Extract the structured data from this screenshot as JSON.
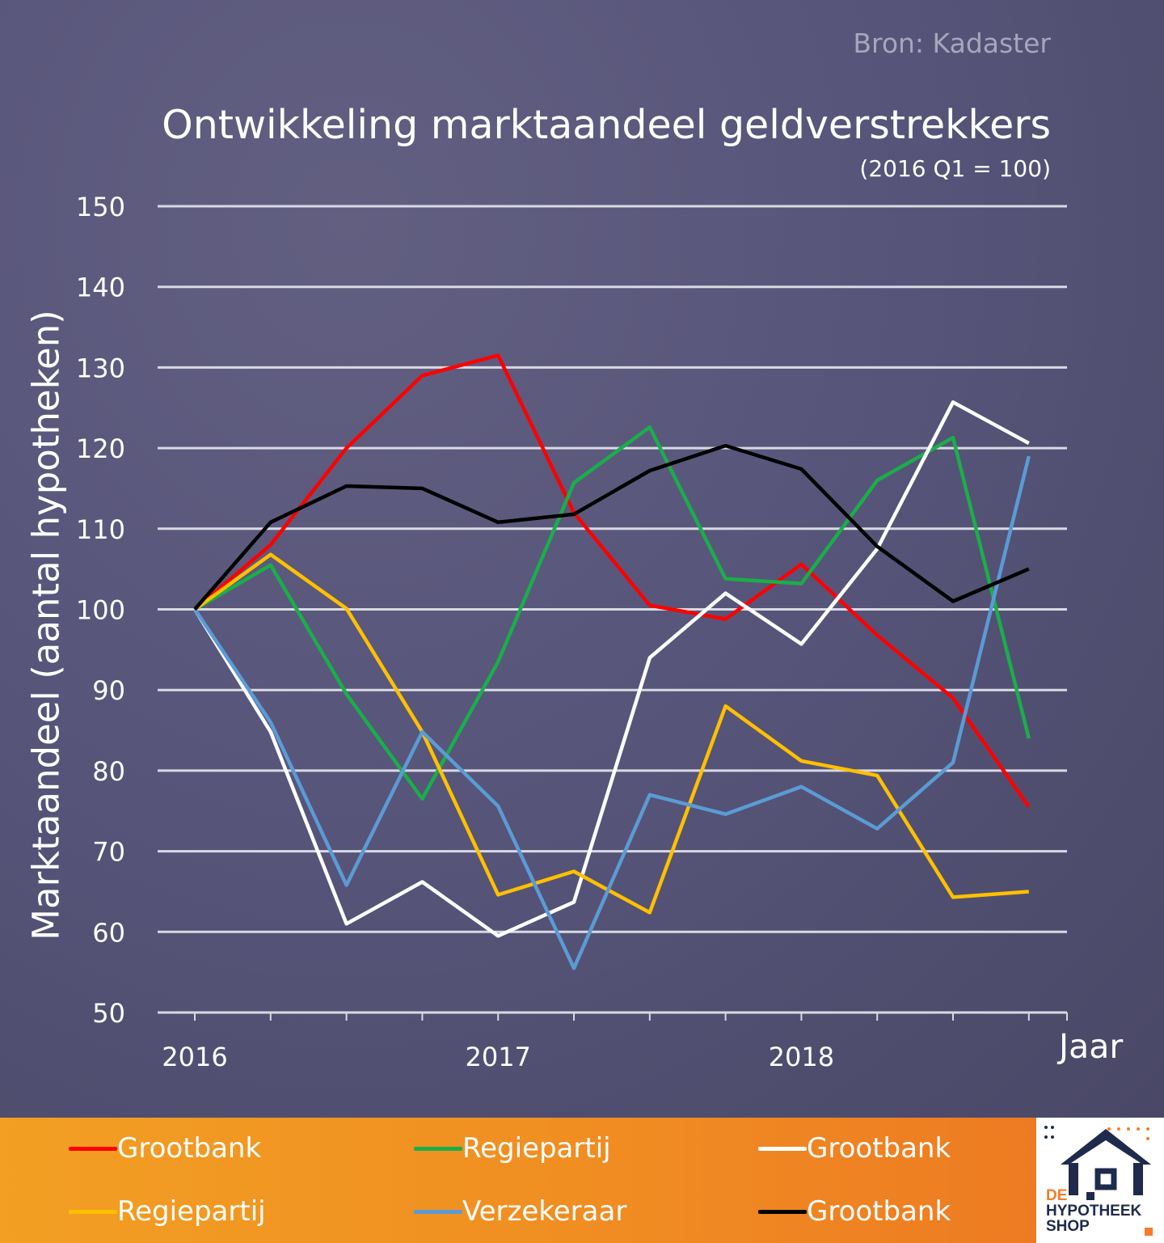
{
  "source": "Bron: Kadaster",
  "chart_data": {
    "type": "line",
    "title": "Ontwikkeling marktaandeel geldverstrekkers",
    "subtitle": "(2016 Q1 = 100)",
    "ylabel": "Marktaandeel (aantal hypotheken)",
    "xlabel": "Jaar",
    "ylim": [
      50,
      150
    ],
    "yticks": [
      50,
      60,
      70,
      80,
      90,
      100,
      110,
      120,
      130,
      140,
      150
    ],
    "x_tick_labels": [
      {
        "label": "2016",
        "x": 0
      },
      {
        "label": "2017",
        "x": 4
      },
      {
        "label": "2018",
        "x": 8
      }
    ],
    "x_count": 12,
    "grid": true,
    "legend_position": "bottom",
    "series": [
      {
        "name": "Grootbank",
        "color": "#ff0000",
        "values": [
          100,
          108,
          120,
          129,
          131.5,
          112,
          100.5,
          98.8,
          105.6,
          96.8,
          89,
          75.5
        ]
      },
      {
        "name": "Regiepartij",
        "color": "#1aae4a",
        "values": [
          100,
          105.5,
          89.5,
          76.5,
          93.5,
          115.7,
          122.6,
          103.8,
          103.2,
          116,
          121.3,
          84
        ]
      },
      {
        "name": "Grootbank",
        "color": "#ffffff",
        "values": [
          100,
          84.8,
          61,
          66.2,
          59.5,
          63.7,
          94,
          102,
          95.7,
          107.5,
          125.7,
          120.6
        ]
      },
      {
        "name": "Regiepartij",
        "color": "#ffc000",
        "values": [
          100,
          106.8,
          100.1,
          84.8,
          64.6,
          67.5,
          62.4,
          88,
          81.2,
          79.4,
          64.3,
          65
        ]
      },
      {
        "name": "Verzekeraar",
        "color": "#5b9bd5",
        "values": [
          100,
          86,
          65.8,
          84.8,
          75.6,
          55.5,
          77,
          74.6,
          78,
          72.8,
          81,
          119
        ]
      },
      {
        "name": "Grootbank",
        "color": "#000000",
        "values": [
          100,
          110.8,
          115.3,
          115,
          110.8,
          111.8,
          117.2,
          120.3,
          117.4,
          107.8,
          101,
          105
        ]
      }
    ]
  },
  "logo": {
    "line1": "DE",
    "line2": "HYPOTHEEK",
    "line3": "SHOP"
  },
  "colors": {
    "background": "#57557a",
    "legend_background": "#f08e22",
    "logo_blue": "#1f2a4d",
    "logo_orange": "#f47c2a"
  }
}
